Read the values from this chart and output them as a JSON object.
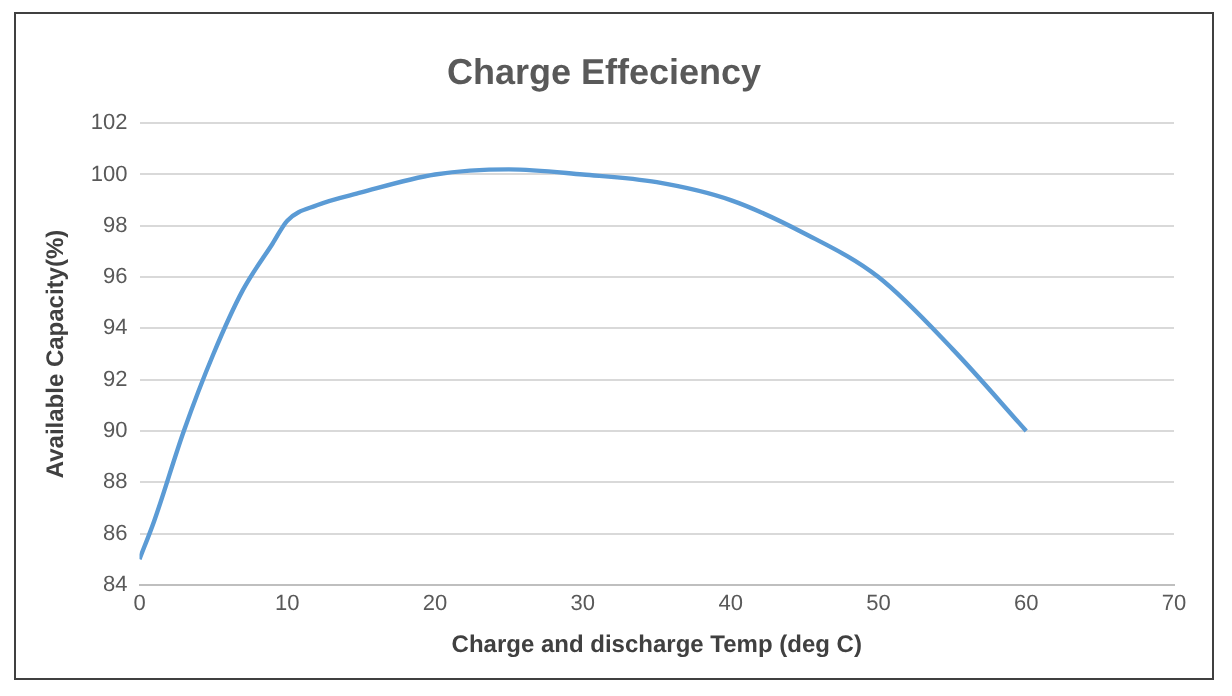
{
  "chart_data": {
    "type": "line",
    "title": "Charge Effeciency",
    "xlabel": "Charge and discharge Temp (deg C)",
    "ylabel": "Available Capacity(%)",
    "x": [
      0,
      1,
      3,
      5,
      7,
      9,
      10,
      12,
      15,
      20,
      25,
      30,
      35,
      40,
      45,
      50,
      55,
      60
    ],
    "series": [
      {
        "color": "#5b9bd5",
        "values": [
          85,
          86.5,
          90,
          93,
          95.5,
          97.3,
          98.2,
          98.8,
          99.3,
          100,
          100.2,
          100,
          99.7,
          99,
          97.7,
          96,
          93.2,
          90
        ]
      }
    ],
    "xlim": [
      0,
      70
    ],
    "xticks": [
      0,
      10,
      20,
      30,
      40,
      50,
      60,
      70
    ],
    "ylim": [
      84,
      102
    ],
    "yticks": [
      84,
      86,
      88,
      90,
      92,
      94,
      96,
      98,
      100,
      102
    ],
    "grid": "y",
    "legend": false,
    "marker": "none",
    "line_style": "solid"
  }
}
